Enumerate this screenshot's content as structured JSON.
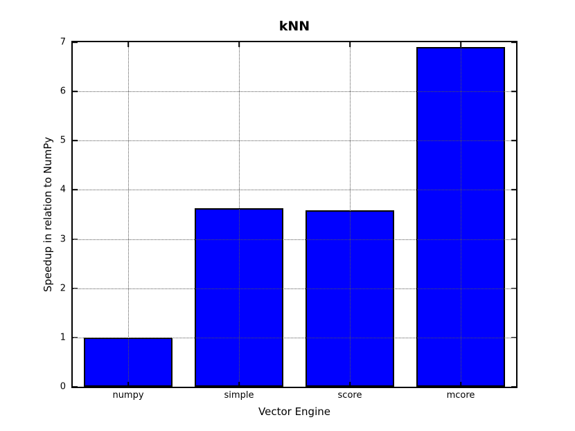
{
  "chart_data": {
    "type": "bar",
    "title": "kNN",
    "xlabel": "Vector Engine",
    "ylabel": "Speedup in relation to NumPy",
    "categories": [
      "numpy",
      "simple",
      "score",
      "mcore"
    ],
    "values": [
      1.0,
      3.63,
      3.59,
      6.9
    ],
    "ylim": [
      0,
      7
    ],
    "yticks": [
      0,
      1,
      2,
      3,
      4,
      5,
      6,
      7
    ],
    "grid": "dotted-both-axes-above-bars",
    "legend": "none",
    "colors": {
      "bar_fill": "#0000ff",
      "bar_edge": "#000000",
      "grid": "#555555",
      "axis": "#000000",
      "text": "#000000",
      "background": "#ffffff"
    }
  }
}
